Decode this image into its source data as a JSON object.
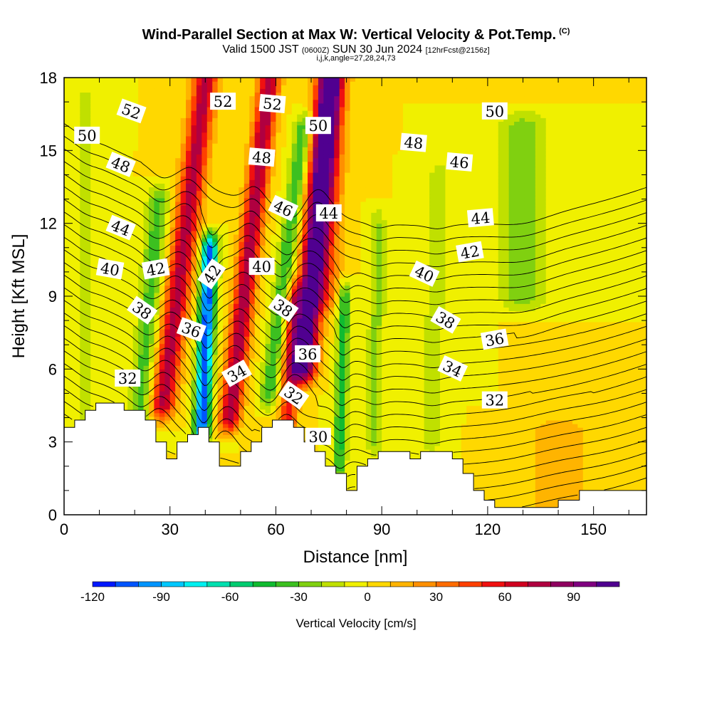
{
  "header": {
    "title": "Wind-Parallel Section at Max W: Vertical Velocity & Pot.Temp.",
    "title_mark": "(C)",
    "valid_prefix": "Valid 1500 JST",
    "valid_utc": "(0600Z)",
    "valid_date": "SUN 30 Jun 2024",
    "forecast_info": "[12hrFcst@2156z]",
    "grid_info": "i,j,k,angle=27,28,24,73"
  },
  "chart_data": {
    "type": "heatmap",
    "xlabel": "Distance [nm]",
    "ylabel": "Height [Kft MSL]",
    "xlim": [
      0,
      165
    ],
    "ylim": [
      0,
      18
    ],
    "x_ticks": [
      0,
      30,
      60,
      90,
      120,
      150
    ],
    "y_ticks": [
      0,
      3,
      6,
      9,
      12,
      15,
      18
    ],
    "x_tick_labels": [
      "0",
      "30",
      "60",
      "90",
      "120",
      "150"
    ],
    "y_tick_labels": [
      "0",
      "3",
      "6",
      "9",
      "12",
      "15",
      "18"
    ],
    "colorbar": {
      "label": "Vertical Velocity [cm/s]",
      "range": [
        -120,
        110
      ],
      "step": 10,
      "tick_values": [
        -120,
        -90,
        -60,
        -30,
        0,
        30,
        60,
        90
      ],
      "tick_labels": [
        "-120",
        "-90",
        "-60",
        "-30",
        "0",
        "30",
        "60",
        "90"
      ],
      "colors": [
        "#0018ff",
        "#0055ff",
        "#0095ff",
        "#00c8ff",
        "#00f0f0",
        "#00e0b0",
        "#00cc70",
        "#10bb30",
        "#3cc020",
        "#80d010",
        "#c0e000",
        "#f0f000",
        "#ffd800",
        "#ffb400",
        "#ff9000",
        "#ff6c00",
        "#ff4000",
        "#f01010",
        "#d00020",
        "#b00040",
        "#900060",
        "#800080",
        "#500090"
      ]
    },
    "terrain": [
      [
        0,
        3.6
      ],
      [
        3,
        3.6
      ],
      [
        3,
        3.9
      ],
      [
        6,
        3.9
      ],
      [
        6,
        4.3
      ],
      [
        9,
        4.3
      ],
      [
        9,
        4.6
      ],
      [
        17,
        4.6
      ],
      [
        17,
        4.3
      ],
      [
        23,
        4.3
      ],
      [
        23,
        3.9
      ],
      [
        26,
        3.9
      ],
      [
        26,
        3.0
      ],
      [
        29,
        3.0
      ],
      [
        29,
        2.3
      ],
      [
        32,
        2.3
      ],
      [
        32,
        3.0
      ],
      [
        35,
        3.0
      ],
      [
        35,
        3.3
      ],
      [
        38,
        3.3
      ],
      [
        38,
        3.6
      ],
      [
        41,
        3.6
      ],
      [
        41,
        3.0
      ],
      [
        44,
        3.0
      ],
      [
        44,
        2.0
      ],
      [
        47,
        2.0
      ],
      [
        47,
        2.0
      ],
      [
        50,
        2.0
      ],
      [
        50,
        2.6
      ],
      [
        53,
        2.6
      ],
      [
        53,
        3.0
      ],
      [
        56,
        3.0
      ],
      [
        56,
        3.6
      ],
      [
        59,
        3.6
      ],
      [
        59,
        3.9
      ],
      [
        65,
        3.9
      ],
      [
        65,
        3.6
      ],
      [
        68,
        3.6
      ],
      [
        68,
        3.0
      ],
      [
        71,
        3.0
      ],
      [
        71,
        2.6
      ],
      [
        74,
        2.6
      ],
      [
        74,
        2.0
      ],
      [
        77,
        2.0
      ],
      [
        77,
        1.7
      ],
      [
        80,
        1.7
      ],
      [
        80,
        1.0
      ],
      [
        83,
        1.0
      ],
      [
        83,
        2.0
      ],
      [
        86,
        2.0
      ],
      [
        86,
        2.3
      ],
      [
        89,
        2.3
      ],
      [
        89,
        2.6
      ],
      [
        98,
        2.6
      ],
      [
        98,
        2.3
      ],
      [
        101,
        2.3
      ],
      [
        101,
        2.6
      ],
      [
        110,
        2.6
      ],
      [
        110,
        2.3
      ],
      [
        113,
        2.3
      ],
      [
        113,
        1.7
      ],
      [
        116,
        1.7
      ],
      [
        116,
        1.0
      ],
      [
        119,
        1.0
      ],
      [
        119,
        0.6
      ],
      [
        122,
        0.6
      ],
      [
        122,
        0.3
      ],
      [
        131,
        0.3
      ],
      [
        131,
        0.3
      ],
      [
        140,
        0.3
      ],
      [
        140,
        0.6
      ],
      [
        146,
        0.6
      ],
      [
        146,
        1.0
      ],
      [
        155,
        1.0
      ],
      [
        155,
        1.0
      ],
      [
        165,
        1.0
      ]
    ],
    "w_features": [
      {
        "x": 28,
        "z0": 4.5,
        "z1": 18,
        "w": 75,
        "sx": 3.5,
        "tilt": 0.9
      },
      {
        "x": 39,
        "z0": 3.5,
        "z1": 11,
        "w": -110,
        "sx": 2.2,
        "tilt": 0.3
      },
      {
        "x": 47,
        "z0": 4.0,
        "z1": 18,
        "w": 80,
        "sx": 3.0,
        "tilt": 0.8
      },
      {
        "x": 21,
        "z0": 3.5,
        "z1": 13,
        "w": -35,
        "sx": 3.0,
        "tilt": 0.6
      },
      {
        "x": 58,
        "z0": 5.0,
        "z1": 16,
        "w": -40,
        "sx": 2.5,
        "tilt": 0.9
      },
      {
        "x": 68,
        "z0": 6.0,
        "z1": 18,
        "w": 110,
        "sx": 3.5,
        "tilt": 0.6
      },
      {
        "x": 63,
        "z0": 3.0,
        "z1": 9,
        "w": 55,
        "sx": 2.5,
        "tilt": 0.4
      },
      {
        "x": 78,
        "z0": 2.0,
        "z1": 9,
        "w": -45,
        "sx": 1.8,
        "tilt": 0.2
      },
      {
        "x": 74,
        "z0": 9.0,
        "z1": 18,
        "w": 35,
        "sx": 4.0,
        "tilt": 0.3
      },
      {
        "x": 88,
        "z0": 3.0,
        "z1": 12,
        "w": -22,
        "sx": 2.5,
        "tilt": 0.1
      },
      {
        "x": 104,
        "z0": 3.0,
        "z1": 14,
        "w": -18,
        "sx": 3.0,
        "tilt": 0.2
      },
      {
        "x": 130,
        "z0": 9.0,
        "z1": 16,
        "w": -28,
        "sx": 7.0,
        "tilt": 0.0
      },
      {
        "x": 140,
        "z0": 0.5,
        "z1": 3.5,
        "w": 18,
        "sx": 9.0,
        "tilt": 0.0
      },
      {
        "x": 6,
        "z0": 3.5,
        "z1": 17,
        "w": -16,
        "sx": 3.0,
        "tilt": 0.0
      }
    ],
    "theta_contours": [
      30,
      31,
      32,
      33,
      34,
      35,
      36,
      37,
      38,
      39,
      40,
      41,
      42,
      43,
      44,
      45,
      46,
      47,
      48,
      49,
      50,
      51,
      52,
      53
    ],
    "contour_labels": [
      {
        "text": "52",
        "x": 19,
        "z": 16.6,
        "angle": 20
      },
      {
        "text": "50",
        "x": 6.5,
        "z": 15.6,
        "angle": 0
      },
      {
        "text": "48",
        "x": 16,
        "z": 14.4,
        "angle": 22
      },
      {
        "text": "44",
        "x": 16,
        "z": 11.8,
        "angle": 22
      },
      {
        "text": "40",
        "x": 13,
        "z": 10.1,
        "angle": 10
      },
      {
        "text": "42",
        "x": 26,
        "z": 10.1,
        "angle": -10
      },
      {
        "text": "38",
        "x": 22,
        "z": 8.4,
        "angle": 35
      },
      {
        "text": "32",
        "x": 18,
        "z": 5.6,
        "angle": 0
      },
      {
        "text": "36",
        "x": 36,
        "z": 7.6,
        "angle": 20
      },
      {
        "text": "42",
        "x": 42,
        "z": 9.9,
        "angle": -55
      },
      {
        "text": "52",
        "x": 45,
        "z": 17.0,
        "angle": 0
      },
      {
        "text": "34",
        "x": 49,
        "z": 5.8,
        "angle": -30
      },
      {
        "text": "52",
        "x": 59,
        "z": 16.9,
        "angle": 5
      },
      {
        "text": "48",
        "x": 56,
        "z": 14.7,
        "angle": 5
      },
      {
        "text": "46",
        "x": 62,
        "z": 12.6,
        "angle": 25
      },
      {
        "text": "40",
        "x": 56,
        "z": 10.2,
        "angle": 0
      },
      {
        "text": "38",
        "x": 62,
        "z": 8.5,
        "angle": 35
      },
      {
        "text": "36",
        "x": 69,
        "z": 6.6,
        "angle": 0
      },
      {
        "text": "32",
        "x": 65,
        "z": 4.9,
        "angle": 35
      },
      {
        "text": "30",
        "x": 72,
        "z": 3.2,
        "angle": 0
      },
      {
        "text": "50",
        "x": 72,
        "z": 16.0,
        "angle": 0
      },
      {
        "text": "44",
        "x": 75,
        "z": 12.4,
        "angle": 0
      },
      {
        "text": "48",
        "x": 99,
        "z": 15.3,
        "angle": 5
      },
      {
        "text": "46",
        "x": 112,
        "z": 14.5,
        "angle": 5
      },
      {
        "text": "40",
        "x": 102,
        "z": 9.9,
        "angle": 25
      },
      {
        "text": "38",
        "x": 108,
        "z": 8.0,
        "angle": 30
      },
      {
        "text": "34",
        "x": 110,
        "z": 6.0,
        "angle": 25
      },
      {
        "text": "50",
        "x": 122,
        "z": 16.6,
        "angle": 0
      },
      {
        "text": "44",
        "x": 118,
        "z": 12.2,
        "angle": -5
      },
      {
        "text": "42",
        "x": 115,
        "z": 10.8,
        "angle": -10
      },
      {
        "text": "36",
        "x": 122,
        "z": 7.2,
        "angle": -10
      },
      {
        "text": "32",
        "x": 122,
        "z": 4.7,
        "angle": 0
      }
    ]
  }
}
